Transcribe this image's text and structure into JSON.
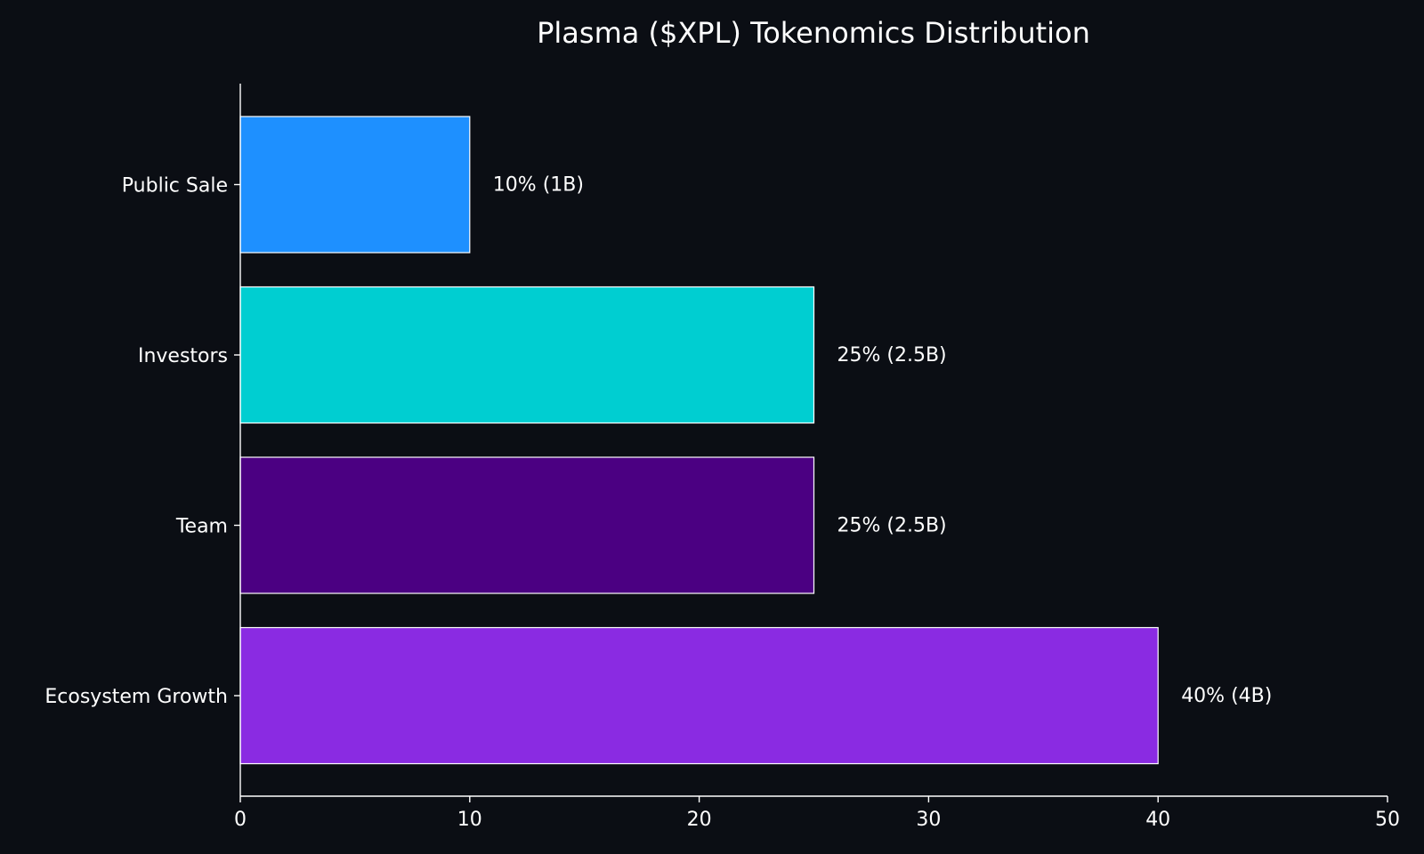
{
  "chart_data": {
    "type": "bar",
    "orientation": "horizontal",
    "title": "Plasma ($XPL) Tokenomics Distribution",
    "xlabel": "",
    "ylabel": "",
    "xlim": [
      0,
      50
    ],
    "x_ticks": [
      0,
      10,
      20,
      30,
      40,
      50
    ],
    "grid": false,
    "categories": [
      "Ecosystem Growth",
      "Team",
      "Investors",
      "Public Sale"
    ],
    "values": [
      40,
      25,
      25,
      10
    ],
    "data_labels": [
      "40% (4B)",
      "25% (2.5B)",
      "25% (2.5B)",
      "10% (1B)"
    ],
    "colors": [
      "#8a2be2",
      "#4b0082",
      "#00ced1",
      "#1e90ff"
    ],
    "background": "#0b0e14"
  }
}
